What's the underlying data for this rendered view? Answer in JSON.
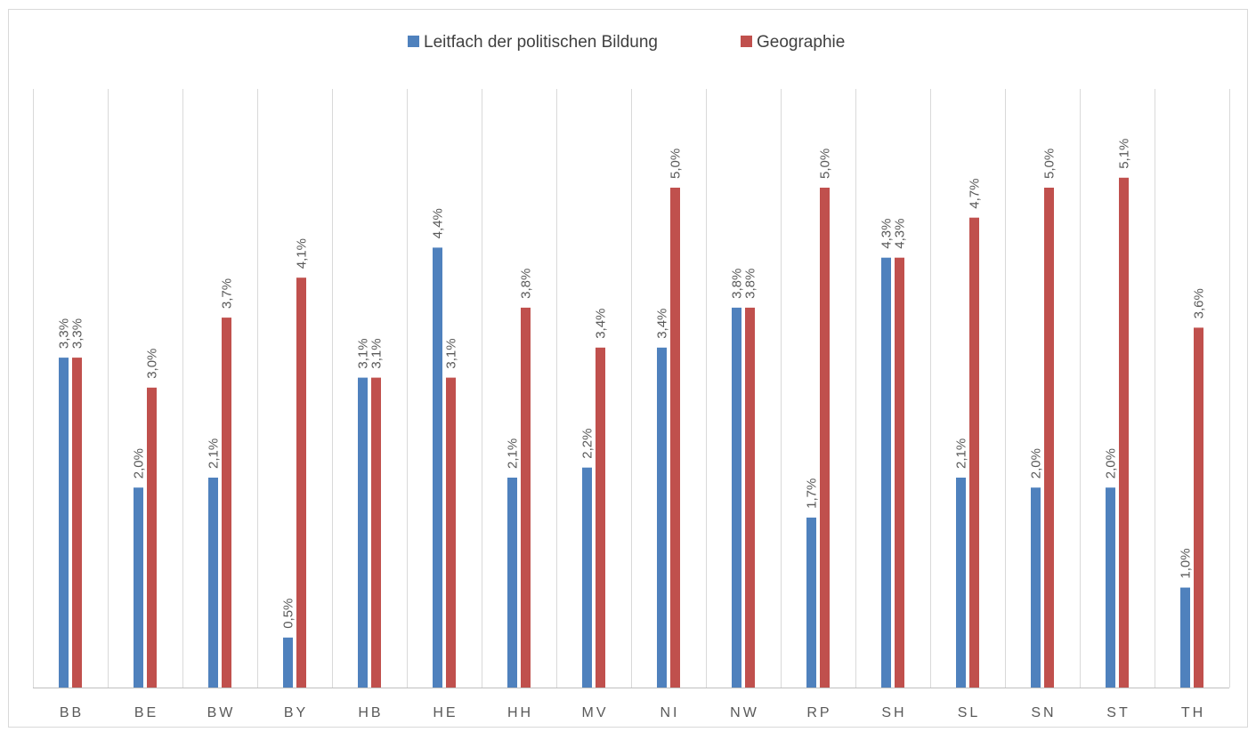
{
  "chart_data": {
    "type": "bar",
    "categories": [
      "BB",
      "BE",
      "BW",
      "BY",
      "HB",
      "HE",
      "HH",
      "MV",
      "NI",
      "NW",
      "RP",
      "SH",
      "SL",
      "SN",
      "ST",
      "TH"
    ],
    "series": [
      {
        "name": "Leitfach der politischen Bildung",
        "color": "#4f81bd",
        "values": [
          3.3,
          2.0,
          2.1,
          0.5,
          3.1,
          4.4,
          2.1,
          2.2,
          3.4,
          3.8,
          1.7,
          4.3,
          2.1,
          2.0,
          2.0,
          1.0
        ],
        "labels": [
          "3,3%",
          "2,0%",
          "2,1%",
          "0,5%",
          "3,1%",
          "4,4%",
          "2,1%",
          "2,2%",
          "3,4%",
          "3,8%",
          "1,7%",
          "4,3%",
          "2,1%",
          "2,0%",
          "2,0%",
          "1,0%"
        ]
      },
      {
        "name": "Geographie",
        "color": "#c0504d",
        "values": [
          3.3,
          3.0,
          3.7,
          4.1,
          3.1,
          3.1,
          3.8,
          3.4,
          5.0,
          3.8,
          5.0,
          4.3,
          4.7,
          5.0,
          5.1,
          3.6
        ],
        "labels": [
          "3,3%",
          "3,0%",
          "3,7%",
          "4,1%",
          "3,1%",
          "3,1%",
          "3,8%",
          "3,4%",
          "5,0%",
          "3,8%",
          "5,0%",
          "4,3%",
          "4,7%",
          "5,0%",
          "5,1%",
          "3,6%"
        ]
      }
    ],
    "ylim": [
      0,
      6
    ],
    "grid": "vertical category separators",
    "legend": "top-center",
    "title": "",
    "xlabel": "",
    "ylabel": ""
  }
}
